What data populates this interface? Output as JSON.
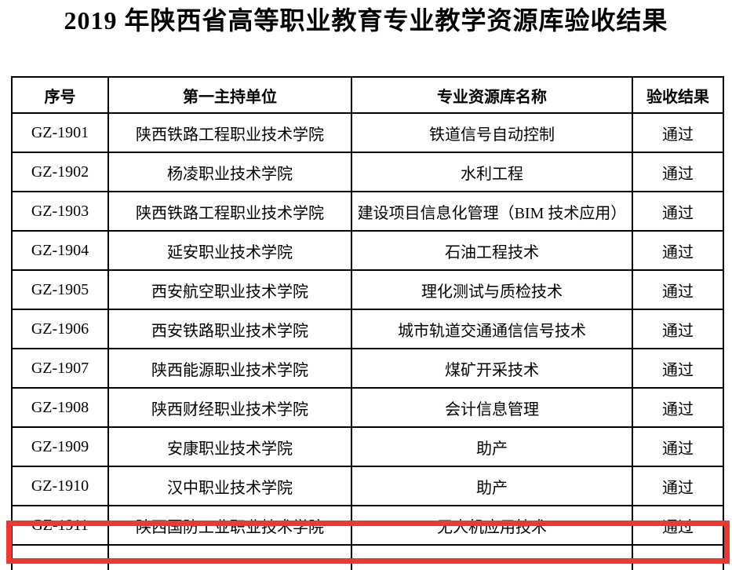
{
  "page": {
    "title": "2019 年陕西省高等职业教育专业教学资源库验收结果"
  },
  "table": {
    "headers": [
      "序号",
      "第一主持单位",
      "专业资源库名称",
      "验收结果"
    ],
    "rows": [
      {
        "id": "GZ-1901",
        "host": "陕西铁路工程职业技术学院",
        "resource": "铁道信号自动控制",
        "result": "通过"
      },
      {
        "id": "GZ-1902",
        "host": "杨凌职业技术学院",
        "resource": "水利工程",
        "result": "通过"
      },
      {
        "id": "GZ-1903",
        "host": "陕西铁路工程职业技术学院",
        "resource": "建设项目信息化管理（BIM 技术应用）",
        "result": "通过"
      },
      {
        "id": "GZ-1904",
        "host": "延安职业技术学院",
        "resource": "石油工程技术",
        "result": "通过"
      },
      {
        "id": "GZ-1905",
        "host": "西安航空职业技术学院",
        "resource": "理化测试与质检技术",
        "result": "通过"
      },
      {
        "id": "GZ-1906",
        "host": "西安铁路职业技术学院",
        "resource": "城市轨道交通通信信号技术",
        "result": "通过"
      },
      {
        "id": "GZ-1907",
        "host": "陕西能源职业技术学院",
        "resource": "煤矿开采技术",
        "result": "通过"
      },
      {
        "id": "GZ-1908",
        "host": "陕西财经职业技术学院",
        "resource": "会计信息管理",
        "result": "通过"
      },
      {
        "id": "GZ-1909",
        "host": "安康职业技术学院",
        "resource": "助产",
        "result": "通过"
      },
      {
        "id": "GZ-1910",
        "host": "汉中职业技术学院",
        "resource": "助产",
        "result": "通过"
      },
      {
        "id": "GZ-1911",
        "host": "陕西国防工业职业技术学院",
        "resource": "无人机应用技术",
        "result": "通过"
      }
    ],
    "highlight": {
      "row_id": "GZ-1911",
      "color": "#ee3831"
    }
  }
}
